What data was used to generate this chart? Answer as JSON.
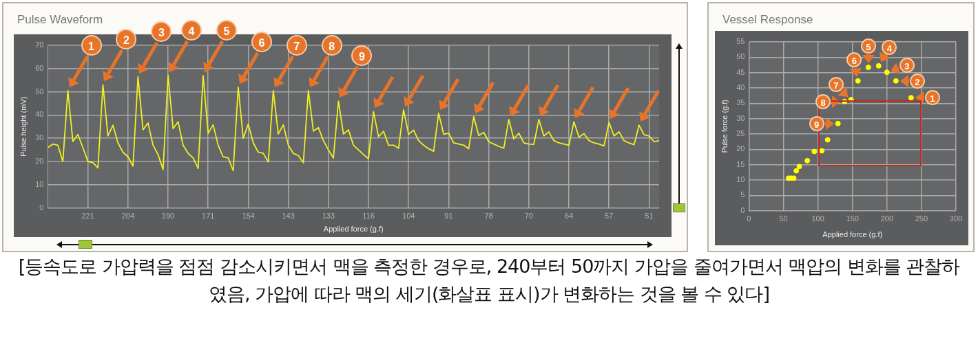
{
  "chart_data": [
    {
      "type": "line",
      "title": "Pulse Waveform",
      "xlabel": "Applied force (g.f)",
      "ylabel": "Pulse height (mV)",
      "categories": [
        null,
        null,
        null,
        null,
        null,
        null,
        null,
        null,
        "221",
        null,
        null,
        null,
        null,
        null,
        null,
        null,
        "204",
        null,
        null,
        null,
        null,
        null,
        null,
        null,
        "190",
        null,
        null,
        null,
        null,
        null,
        null,
        null,
        "171",
        null,
        null,
        null,
        null,
        null,
        null,
        null,
        "154",
        null,
        null,
        null,
        null,
        null,
        null,
        null,
        "143",
        null,
        null,
        null,
        null,
        null,
        null,
        null,
        "133",
        null,
        null,
        null,
        null,
        null,
        null,
        null,
        "116",
        null,
        null,
        null,
        null,
        null,
        null,
        null,
        "104",
        null,
        null,
        null,
        null,
        null,
        null,
        null,
        "91",
        null,
        null,
        null,
        null,
        null,
        null,
        null,
        "78",
        null,
        null,
        null,
        null,
        null,
        null,
        null,
        "70",
        null,
        null,
        null,
        null,
        null,
        null,
        null,
        "64",
        null,
        null,
        null,
        null,
        null,
        null,
        null,
        "57",
        null,
        null,
        null,
        null,
        null,
        null,
        null,
        "51",
        null,
        null
      ],
      "values": [
        26,
        27.5,
        27,
        20,
        50.5,
        28.6,
        31.6,
        26,
        20,
        19.5,
        17.2,
        53,
        31,
        35.6,
        28,
        24,
        22,
        18,
        56.5,
        33.6,
        36.6,
        27,
        23,
        16.5,
        57,
        34.1,
        37.1,
        27,
        23.5,
        21.5,
        17,
        57,
        32.1,
        35.8,
        27,
        22,
        21.5,
        16,
        52,
        30,
        36.1,
        28,
        24,
        23.5,
        19.8,
        50.5,
        31.8,
        35.8,
        27,
        23.5,
        22.5,
        19.5,
        50.5,
        33.1,
        34.6,
        29,
        25,
        21.5,
        46,
        31.8,
        33.6,
        27,
        25,
        23,
        21.2,
        41.5,
        30.7,
        33,
        27,
        27,
        25.7,
        42.3,
        31.7,
        33.5,
        29,
        27,
        25.5,
        24.4,
        40.8,
        31.7,
        32.2,
        28,
        27.5,
        27,
        25.5,
        39.3,
        31.2,
        32.5,
        28.5,
        27.5,
        26.5,
        25.7,
        38.1,
        29.7,
        32.2,
        28,
        27.5,
        27.4,
        38.1,
        31,
        32.7,
        29,
        28,
        27.5,
        27,
        37.1,
        30.5,
        32,
        29,
        28,
        27.5,
        26.7,
        36.8,
        31,
        32.7,
        29,
        28,
        27.2,
        35.6,
        31.5,
        31,
        28.5,
        29
      ],
      "color": "#f0f020",
      "marker": "none",
      "ylim": [
        0,
        70
      ],
      "yticks": [
        0,
        10,
        20,
        30,
        40,
        50,
        60,
        70
      ],
      "grid": true,
      "annotations": [
        "1",
        "2",
        "3",
        "4",
        "5",
        "6",
        "7",
        "8",
        "9"
      ]
    },
    {
      "type": "scatter",
      "title": "Vessel Response",
      "xlabel": "Applied force (g.f)",
      "ylabel": "Pulse force (g.f)",
      "x": [
        235,
        213,
        200,
        188,
        173,
        158,
        148,
        138.5,
        129,
        114,
        105.5,
        94.7,
        84.6,
        73,
        68.6,
        65,
        61,
        57.4
      ],
      "values": [
        36.8,
        42.3,
        45.1,
        47.2,
        46.7,
        42.3,
        36.2,
        35.6,
        28.4,
        23.1,
        19.5,
        19.3,
        16.3,
        14.4,
        13,
        10.6,
        10.6,
        10.6
      ],
      "color": "#ffff00",
      "marker": "circle",
      "xlim": [
        0,
        300
      ],
      "xticks": [
        0,
        50,
        100,
        150,
        200,
        250,
        300
      ],
      "ylim": [
        0,
        55
      ],
      "yticks": [
        0,
        5,
        10,
        15,
        20,
        25,
        30,
        35,
        40,
        45,
        50,
        55
      ],
      "grid": true,
      "annotations": [
        {
          "text": "1",
          "x": 235,
          "y": 36.8
        },
        {
          "text": "2",
          "x": 213,
          "y": 42.3
        },
        {
          "text": "3",
          "x": 200,
          "y": 45.1
        },
        {
          "text": "4",
          "x": 188,
          "y": 47.2
        },
        {
          "text": "5",
          "x": 173,
          "y": 46.7
        },
        {
          "text": "6",
          "x": 158,
          "y": 42.3
        },
        {
          "text": "7",
          "x": 148,
          "y": 36.2
        },
        {
          "text": "8",
          "x": 138.5,
          "y": 35.6
        },
        {
          "text": "9",
          "x": 129,
          "y": 28.4
        },
        "[등속도로 가압력을 점점 감소시키면서 맥을 측정한 경우로, 240부터 50까지 가압을 줄여가면서 맥압의 변화를 관찰하였음, 가압에 따라 맥의 세기(화살표 표시)가 변화하는 것을 볼 수 있다]"
      ]
    }
  ]
}
